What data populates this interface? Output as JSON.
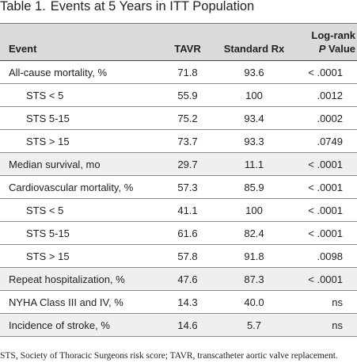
{
  "caption": {
    "label": "Table 1.",
    "title": "Events at 5 Years in ITT Population"
  },
  "header": {
    "event": "Event",
    "tavr": "TAVR",
    "standard": "Standard Rx",
    "logrank_line1": "Log-rank",
    "logrank_p": "P",
    "logrank_value": "Value"
  },
  "rows": [
    {
      "event": "All-cause mortality, %",
      "tavr": "71.8",
      "standard": "93.6",
      "p": "< .0001",
      "indent": false,
      "shade": false
    },
    {
      "event": "STS < 5",
      "tavr": "55.9",
      "standard": "100",
      "p": ".0012",
      "indent": true,
      "shade": false
    },
    {
      "event": "STS 5-15",
      "tavr": "75.2",
      "standard": "93.4",
      "p": ".0002",
      "indent": true,
      "shade": false
    },
    {
      "event": "STS > 15",
      "tavr": "73.7",
      "standard": "93.3",
      "p": ".0749",
      "indent": true,
      "shade": false
    },
    {
      "event": "Median survival, mo",
      "tavr": "29.7",
      "standard": "11.1",
      "p": "< .0001",
      "indent": false,
      "shade": true
    },
    {
      "event": "Cardiovascular mortality, %",
      "tavr": "57.3",
      "standard": "85.9",
      "p": "< .0001",
      "indent": false,
      "shade": false
    },
    {
      "event": "STS < 5",
      "tavr": "41.1",
      "standard": "100",
      "p": "< .0001",
      "indent": true,
      "shade": false
    },
    {
      "event": "STS 5-15",
      "tavr": "61.6",
      "standard": "82.4",
      "p": "< .0001",
      "indent": true,
      "shade": false
    },
    {
      "event": "STS > 15",
      "tavr": "57.8",
      "standard": "91.8",
      "p": ".0098",
      "indent": true,
      "shade": false
    },
    {
      "event": "Repeat hospitalization, %",
      "tavr": "47.6",
      "standard": "87.3",
      "p": "< .0001",
      "indent": false,
      "shade": true
    },
    {
      "event": "NYHA Class III and IV, %",
      "tavr": "14.3",
      "standard": "40.0",
      "p": "ns",
      "indent": false,
      "shade": false
    },
    {
      "event": "Incidence of stroke, %",
      "tavr": "14.6",
      "standard": "5.7",
      "p": "ns",
      "indent": false,
      "shade": true
    }
  ],
  "footnote": "STS, Society of Thoracic Surgeons risk score; TAVR, transcatheter aortic valve replacement."
}
